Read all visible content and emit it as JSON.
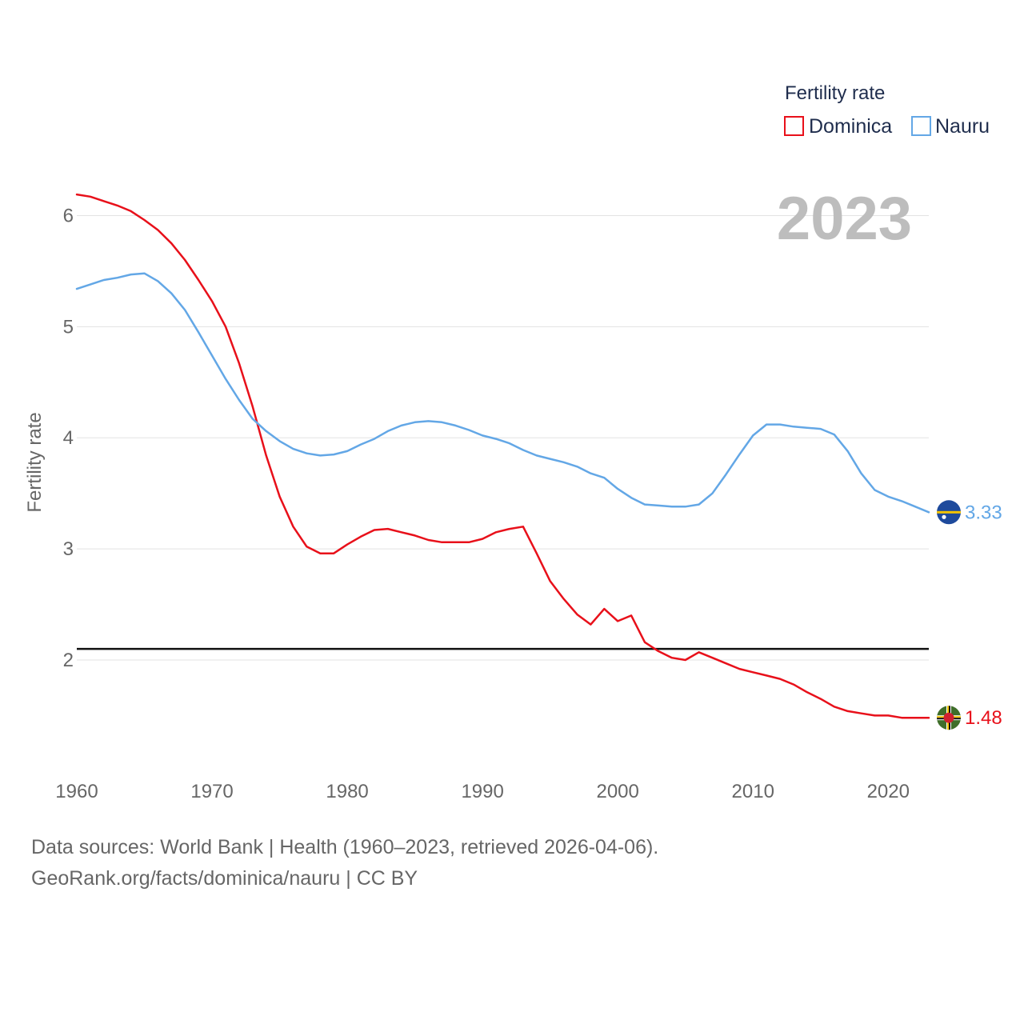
{
  "chart_data": {
    "type": "line",
    "ylabel": "Fertility rate",
    "xlabel": "",
    "xlim": [
      1960,
      2023
    ],
    "ylim": [
      1.1,
      6.5
    ],
    "x_ticks": [
      1960,
      1970,
      1980,
      1990,
      2000,
      2010,
      2020
    ],
    "y_ticks": [
      2,
      3,
      4,
      5,
      6
    ],
    "current_year": "2023",
    "legend_title": "Fertility rate",
    "legend_position": "top-right",
    "reference_line": 2.1,
    "x": [
      1960,
      1961,
      1962,
      1963,
      1964,
      1965,
      1966,
      1967,
      1968,
      1969,
      1970,
      1971,
      1972,
      1973,
      1974,
      1975,
      1976,
      1977,
      1978,
      1979,
      1980,
      1981,
      1982,
      1983,
      1984,
      1985,
      1986,
      1987,
      1988,
      1989,
      1990,
      1991,
      1992,
      1993,
      1994,
      1995,
      1996,
      1997,
      1998,
      1999,
      2000,
      2001,
      2002,
      2003,
      2004,
      2005,
      2006,
      2007,
      2008,
      2009,
      2010,
      2011,
      2012,
      2013,
      2014,
      2015,
      2016,
      2017,
      2018,
      2019,
      2020,
      2021,
      2022,
      2023
    ],
    "series": [
      {
        "name": "Dominica",
        "color": "#e8101a",
        "end_label": "1.48",
        "flag": "dominica",
        "values": [
          6.19,
          6.17,
          6.13,
          6.09,
          6.04,
          5.96,
          5.87,
          5.75,
          5.6,
          5.42,
          5.23,
          5.0,
          4.67,
          4.28,
          3.84,
          3.47,
          3.2,
          3.02,
          2.96,
          2.96,
          3.04,
          3.11,
          3.17,
          3.18,
          3.15,
          3.12,
          3.08,
          3.06,
          3.06,
          3.06,
          3.09,
          3.15,
          3.18,
          3.2,
          2.96,
          2.71,
          2.55,
          2.41,
          2.32,
          2.46,
          2.35,
          2.4,
          2.16,
          2.08,
          2.02,
          2.0,
          2.07,
          2.02,
          1.97,
          1.92,
          1.89,
          1.86,
          1.83,
          1.78,
          1.71,
          1.65,
          1.58,
          1.54,
          1.52,
          1.5,
          1.5,
          1.48,
          1.48,
          1.48
        ]
      },
      {
        "name": "Nauru",
        "color": "#63a7e6",
        "end_label": "3.33",
        "flag": "nauru",
        "values": [
          5.34,
          5.38,
          5.42,
          5.44,
          5.47,
          5.48,
          5.41,
          5.3,
          5.15,
          4.95,
          4.74,
          4.53,
          4.34,
          4.17,
          4.06,
          3.97,
          3.9,
          3.86,
          3.84,
          3.85,
          3.88,
          3.94,
          3.99,
          4.06,
          4.11,
          4.14,
          4.15,
          4.14,
          4.11,
          4.07,
          4.02,
          3.99,
          3.95,
          3.89,
          3.84,
          3.81,
          3.78,
          3.74,
          3.68,
          3.64,
          3.54,
          3.46,
          3.4,
          3.39,
          3.38,
          3.38,
          3.4,
          3.5,
          3.67,
          3.85,
          4.02,
          4.12,
          4.12,
          4.1,
          4.09,
          4.08,
          4.03,
          3.88,
          3.68,
          3.53,
          3.47,
          3.43,
          3.38,
          3.33
        ]
      }
    ]
  },
  "footer": {
    "line1": "Data sources: World Bank | Health (1960–2023, retrieved 2026-04-06).",
    "line2": "GeoRank.org/facts/dominica/nauru | CC BY"
  }
}
